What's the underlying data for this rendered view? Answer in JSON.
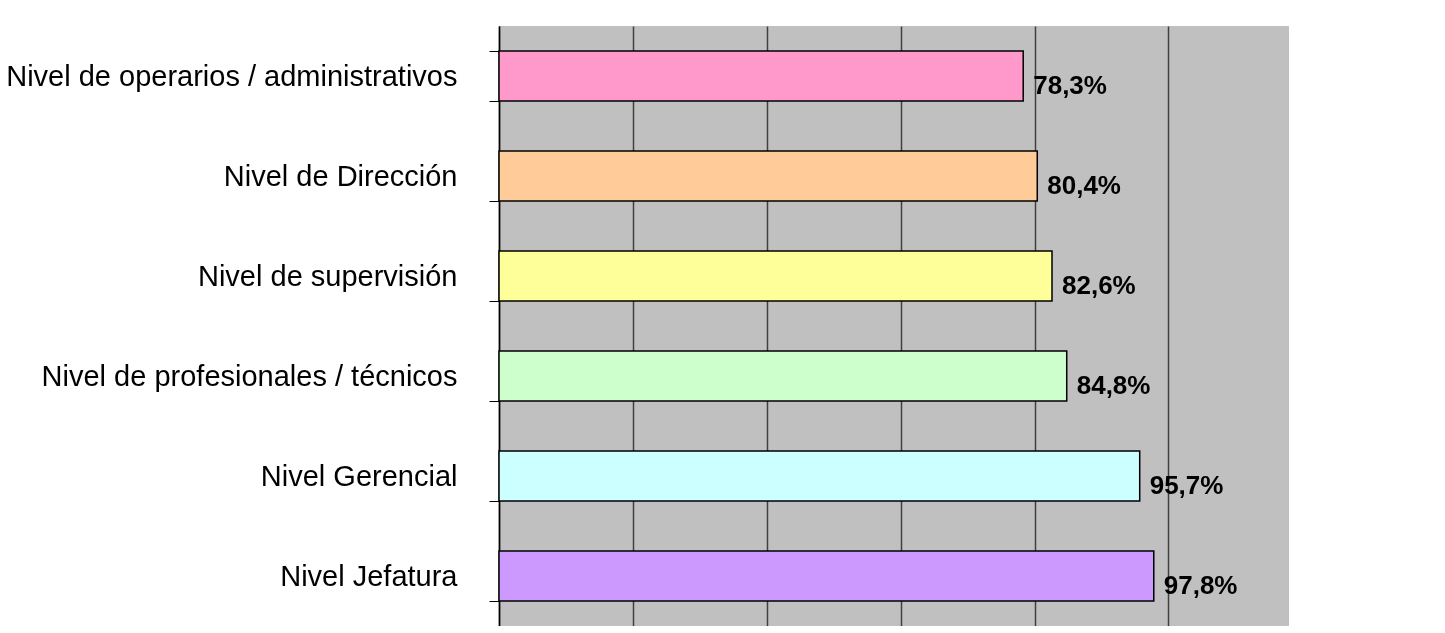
{
  "chart_data": {
    "type": "bar",
    "orientation": "horizontal",
    "categories": [
      "Nivel de operarios / administrativos",
      "Nivel de Dirección",
      "Nivel de supervisión",
      "Nivel de profesionales / técnicos",
      "Nivel Gerencial",
      "Nivel Jefatura"
    ],
    "values": [
      78.3,
      80.4,
      82.6,
      84.8,
      95.7,
      97.8
    ],
    "value_labels": [
      "78,3%",
      "80,4%",
      "82,6%",
      "84,8%",
      "95,7%",
      "97,8%"
    ],
    "colors": [
      "#ff99cc",
      "#ffcc99",
      "#ffff99",
      "#ccffcc",
      "#ccffff",
      "#cc99ff"
    ],
    "xlim": [
      0,
      118
    ],
    "xticks": [
      {
        "value": 0,
        "label": null
      },
      {
        "value": 20,
        "label": null
      },
      {
        "value": 40,
        "label": null
      },
      {
        "value": 60,
        "label": null
      },
      {
        "value": 80,
        "label": null
      },
      {
        "value": 100,
        "label": null
      }
    ],
    "tick_labels": "y",
    "grid": "x"
  }
}
